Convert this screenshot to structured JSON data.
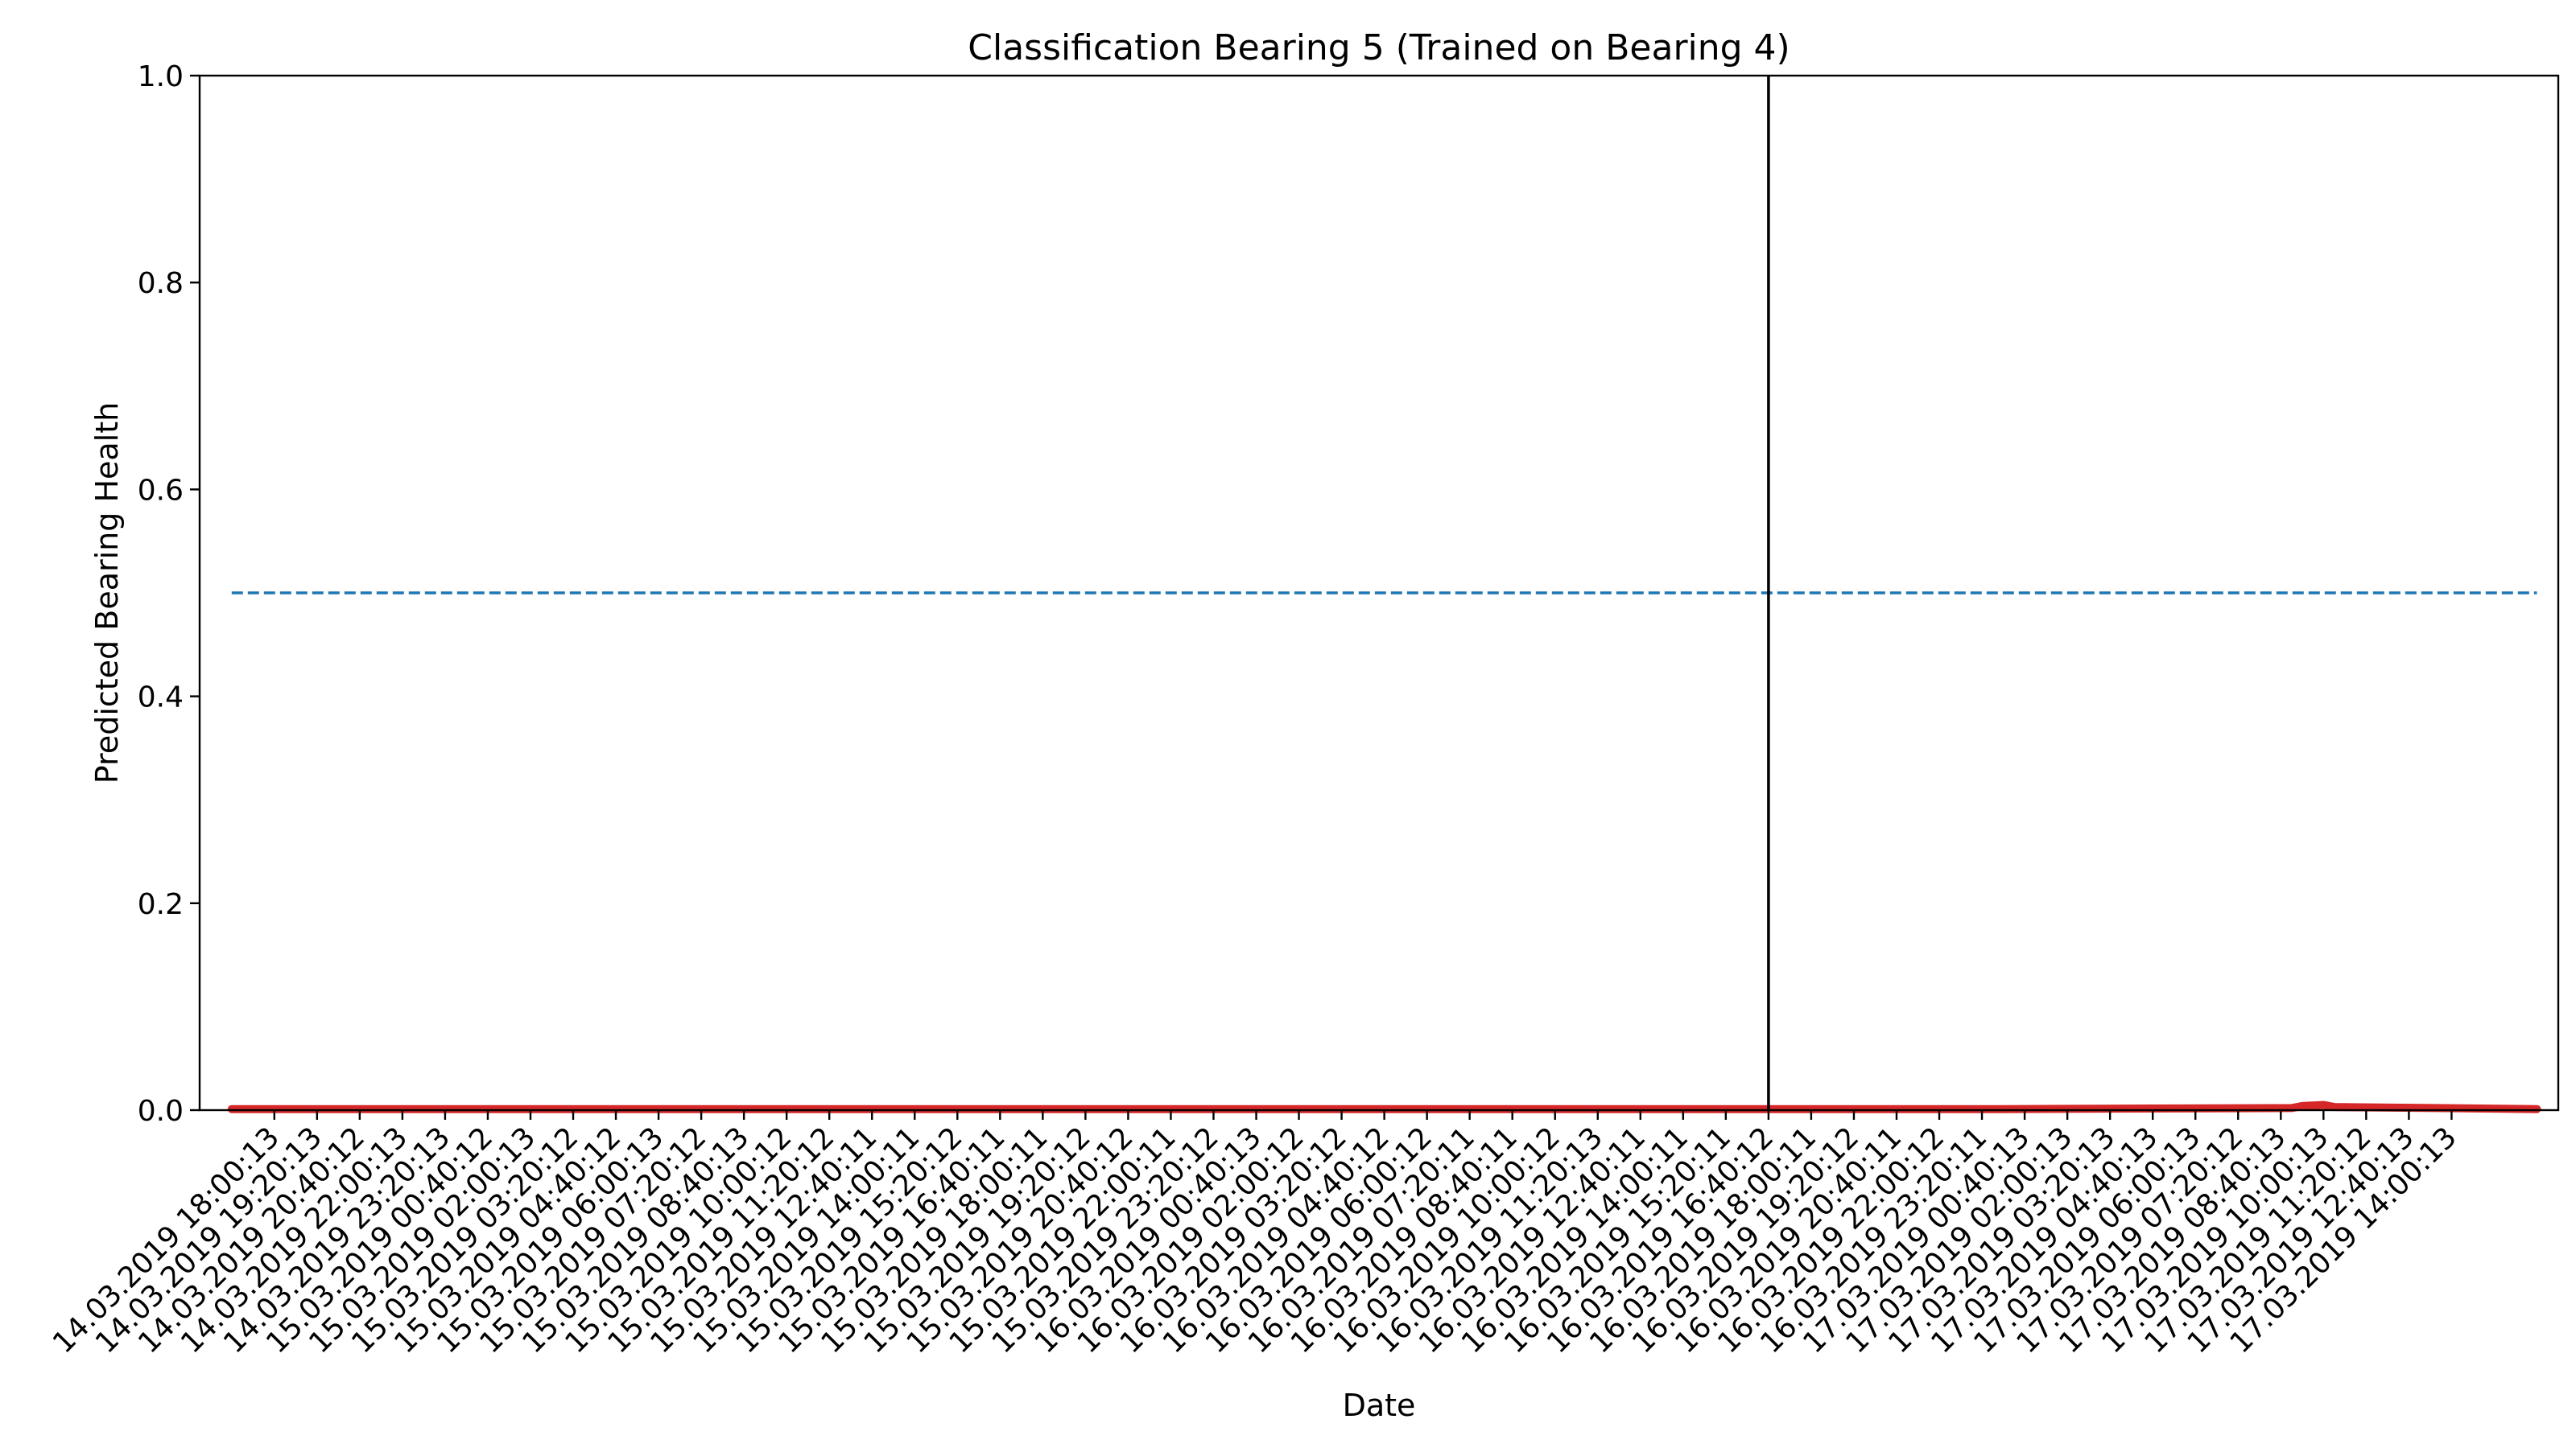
{
  "chart_data": {
    "type": "line",
    "title": "Classification Bearing 5 (Trained on Bearing 4)",
    "xlabel": "Date",
    "ylabel": "Predicted Bearing Health",
    "ylim": [
      0.0,
      1.0
    ],
    "yticks": [
      0.0,
      0.2,
      0.4,
      0.6,
      0.8,
      1.0
    ],
    "ytick_labels": [
      "0.0",
      "0.2",
      "0.4",
      "0.6",
      "0.8",
      "1.0"
    ],
    "xlim": [
      "14.03.2019 15:40:13",
      "17.03.2019 17:20:13"
    ],
    "x_tick_labels": [
      "14.03.2019 18:00:13",
      "14.03.2019 19:20:13",
      "14.03.2019 20:40:12",
      "14.03.2019 22:00:13",
      "14.03.2019 23:20:13",
      "15.03.2019 00:40:12",
      "15.03.2019 02:00:13",
      "15.03.2019 03:20:12",
      "15.03.2019 04:40:12",
      "15.03.2019 06:00:13",
      "15.03.2019 07:20:12",
      "15.03.2019 08:40:13",
      "15.03.2019 10:00:12",
      "15.03.2019 11:20:12",
      "15.03.2019 12:40:11",
      "15.03.2019 14:00:11",
      "15.03.2019 15:20:12",
      "15.03.2019 16:40:11",
      "15.03.2019 18:00:11",
      "15.03.2019 19:20:12",
      "15.03.2019 20:40:12",
      "15.03.2019 22:00:11",
      "15.03.2019 23:20:12",
      "16.03.2019 00:40:13",
      "16.03.2019 02:00:12",
      "16.03.2019 03:20:12",
      "16.03.2019 04:40:12",
      "16.03.2019 06:00:12",
      "16.03.2019 07:20:11",
      "16.03.2019 08:40:11",
      "16.03.2019 10:00:12",
      "16.03.2019 11:20:13",
      "16.03.2019 12:40:11",
      "16.03.2019 14:00:11",
      "16.03.2019 15:20:11",
      "16.03.2019 16:40:12",
      "16.03.2019 18:00:11",
      "16.03.2019 19:20:12",
      "16.03.2019 20:40:11",
      "16.03.2019 22:00:12",
      "16.03.2019 23:20:11",
      "17.03.2019 00:40:13",
      "17.03.2019 02:00:13",
      "17.03.2019 03:20:13",
      "17.03.2019 04:40:13",
      "17.03.2019 06:00:13",
      "17.03.2019 07:20:12",
      "17.03.2019 08:40:13",
      "17.03.2019 10:00:13",
      "17.03.2019 11:20:12",
      "17.03.2019 12:40:13",
      "17.03.2019 14:00:13"
    ],
    "series": [
      {
        "kind": "predicted",
        "color": "#d62728",
        "x": [
          "14.03.2019 16:40:13",
          "15.03.2019 12:00:12",
          "16.03.2019 08:00:11",
          "17.03.2019 00:00:12",
          "17.03.2019 09:00:13",
          "17.03.2019 09:20:13",
          "17.03.2019 10:00:13",
          "17.03.2019 10:20:13",
          "17.03.2019 16:40:13"
        ],
        "y": [
          0.001,
          0.001,
          0.001,
          0.001,
          0.002,
          0.004,
          0.005,
          0.003,
          0.001
        ]
      },
      {
        "kind": "threshold",
        "style": "dashed",
        "color": "#1f77b4",
        "x": [
          "14.03.2019 16:40:13",
          "17.03.2019 16:40:13"
        ],
        "y": [
          0.5,
          0.5
        ]
      }
    ],
    "vlines": [
      {
        "x": "16.03.2019 16:40:12",
        "color": "#000000"
      }
    ],
    "grid": false,
    "legend": "none"
  }
}
